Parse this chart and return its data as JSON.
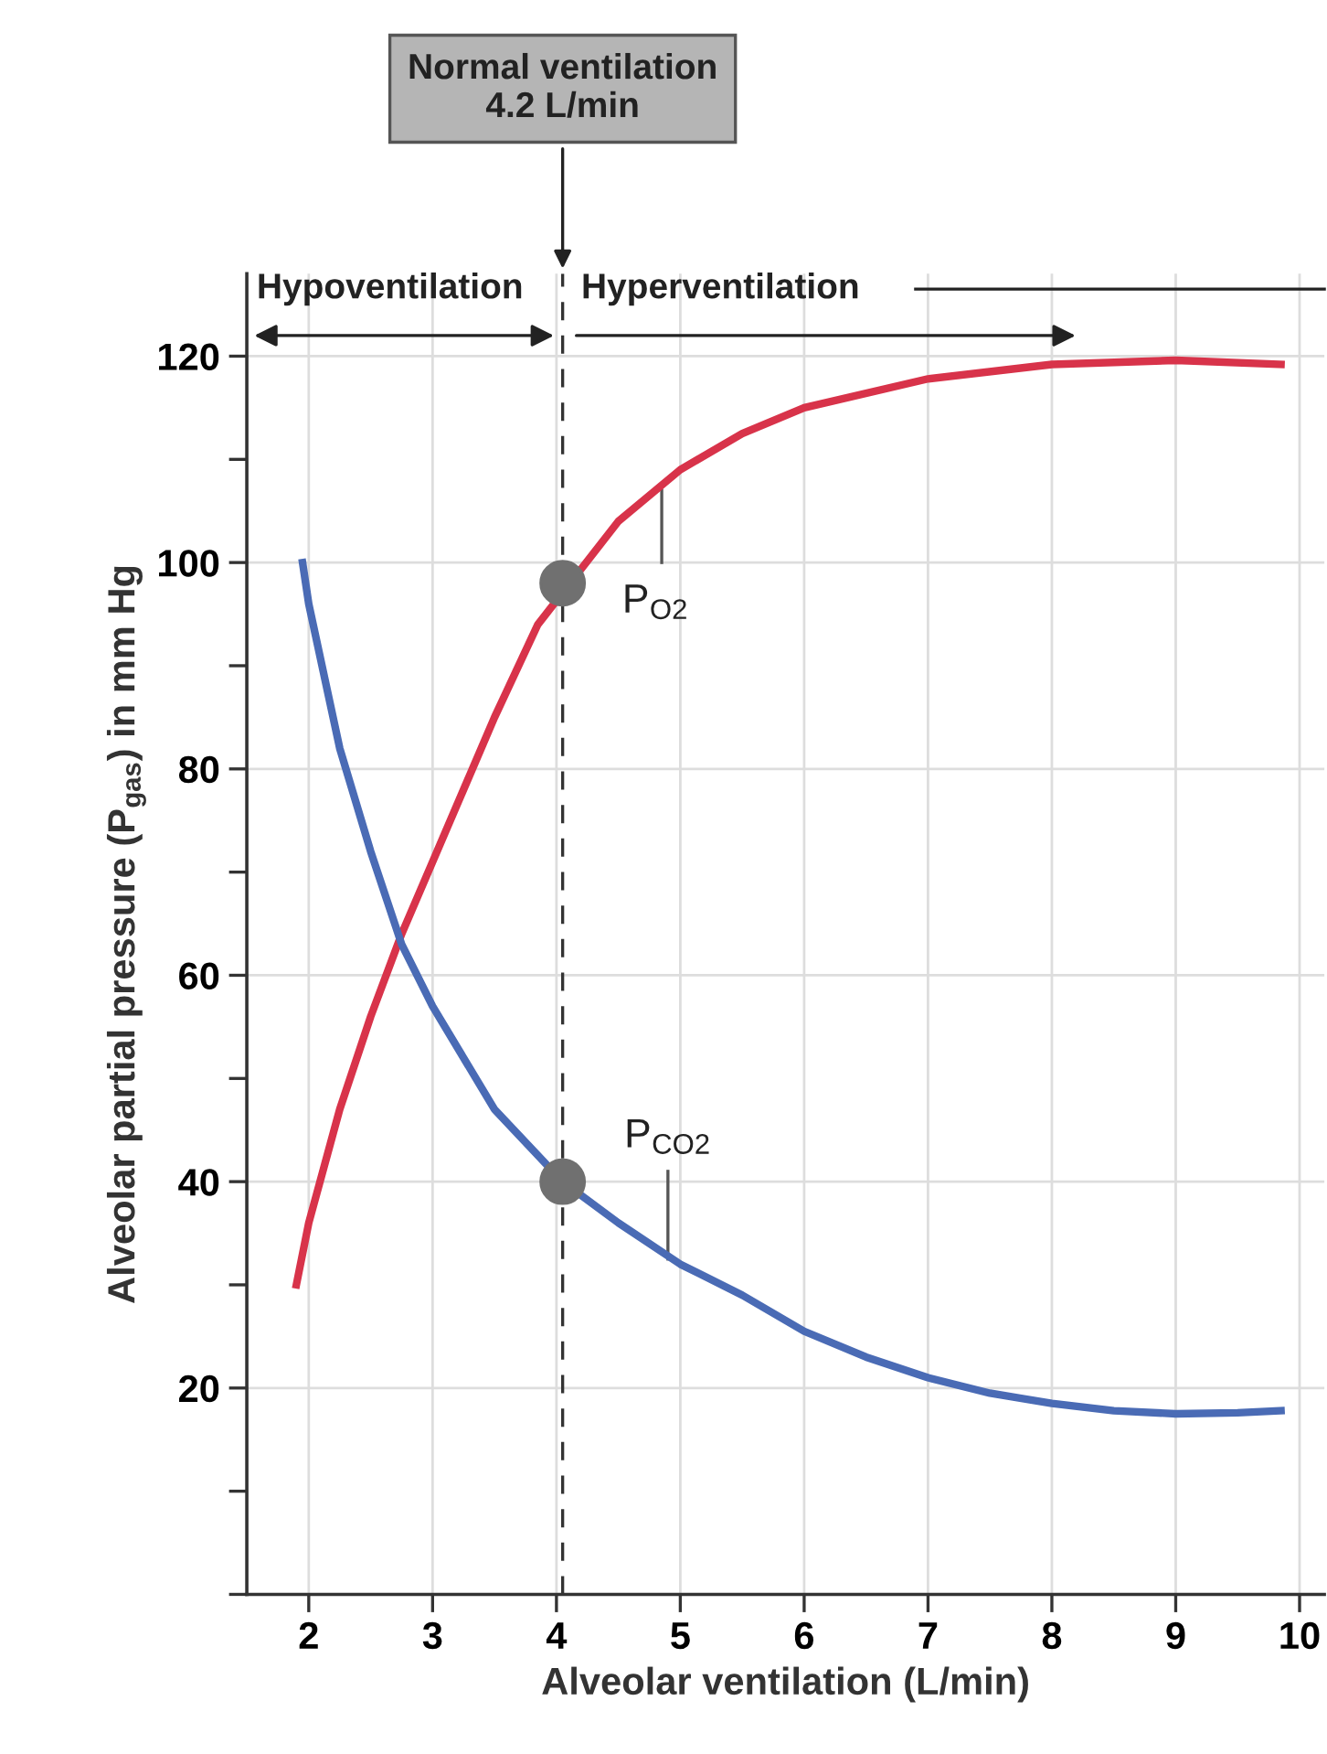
{
  "chart_data": {
    "type": "line",
    "xlabel": "Alveolar ventilation (L/min)",
    "ylabel": "Alveolar partial pressure (P$_{gas}$) in mm Hg",
    "xlim": [
      1.5,
      10.2
    ],
    "xticks": [
      2,
      3,
      4,
      5,
      6,
      7,
      8,
      9,
      10
    ],
    "ylim": [
      0,
      128
    ],
    "yticks": [
      {
        "value": 0,
        "label": null
      },
      {
        "value": 10,
        "label": null
      },
      20,
      {
        "value": 30,
        "label": null
      },
      40,
      {
        "value": 50,
        "label": null
      },
      60,
      {
        "value": 70,
        "label": null
      },
      80,
      {
        "value": 90,
        "label": null
      },
      100,
      {
        "value": 110,
        "label": null
      },
      120
    ],
    "grid": true,
    "legend": false,
    "marker": "none",
    "line_style": "solid",
    "series": [
      {
        "color": "#d8334a",
        "x": [
          1.9,
          2.0,
          2.25,
          2.5,
          2.75,
          3.0,
          3.5,
          3.85,
          4.5,
          5.0,
          5.5,
          6.0,
          7.0,
          8.0,
          9.0,
          9.85
        ],
        "values": [
          30,
          36,
          47,
          56,
          64,
          71,
          85,
          94,
          104,
          109,
          112.5,
          115,
          117.8,
          119.2,
          119.6,
          119.2
        ]
      },
      {
        "color": "#4a6bb5",
        "x": [
          1.95,
          2.0,
          2.25,
          2.5,
          2.75,
          3.0,
          3.5,
          4.05,
          4.5,
          5.0,
          5.5,
          6.0,
          6.5,
          7.0,
          7.5,
          8.0,
          8.5,
          9.0,
          9.5,
          9.85
        ],
        "values": [
          100,
          96,
          82,
          72,
          63,
          57,
          47,
          40,
          36,
          32,
          29,
          25.5,
          23,
          21,
          19.5,
          18.5,
          17.8,
          17.5,
          17.6,
          17.8
        ]
      },
      {
        "type": "scatter",
        "color": "#707070",
        "marker": "circle",
        "x": [
          4.05,
          4.05
        ],
        "values": [
          98,
          40
        ]
      }
    ],
    "ref_lines": [
      {
        "axis": "x",
        "value": 4.05,
        "label": "Normal ventilation\n4.2 L/min",
        "color": "#333333",
        "line_style": "dashed"
      }
    ],
    "annotations": [
      "Hypoventilation",
      "Hyperventilation",
      {
        "text": "P$_{O2}$",
        "x": 4.85,
        "y": 107
      },
      {
        "text": "P$_{CO2}$",
        "x": 4.9,
        "y": 32.5
      }
    ]
  }
}
